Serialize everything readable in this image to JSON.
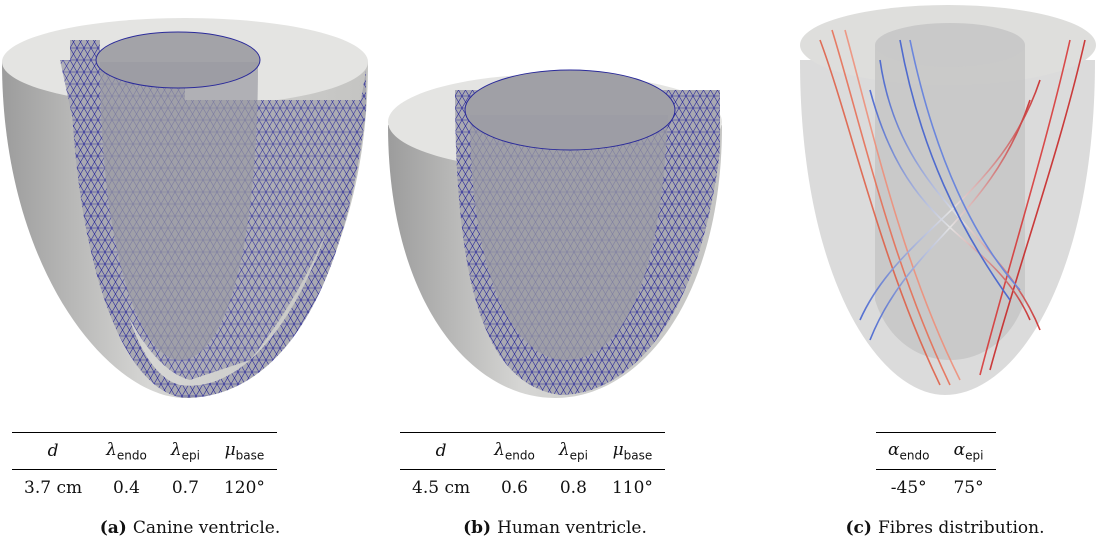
{
  "panels": [
    {
      "label": "(a)",
      "caption": "Canine ventricle.",
      "table": {
        "header": [
          {
            "symbol": "d"
          },
          {
            "symbol": "λ",
            "sub": "endo"
          },
          {
            "symbol": "λ",
            "sub": "epi"
          },
          {
            "symbol": "μ",
            "sub": "base"
          }
        ],
        "rows": [
          [
            "3.7 cm",
            "0.4",
            "0.7",
            "120°"
          ]
        ]
      }
    },
    {
      "label": "(b)",
      "caption": "Human ventricle.",
      "table": {
        "header": [
          {
            "symbol": "d"
          },
          {
            "symbol": "λ",
            "sub": "endo"
          },
          {
            "symbol": "λ",
            "sub": "epi"
          },
          {
            "symbol": "μ",
            "sub": "base"
          }
        ],
        "rows": [
          [
            "4.5 cm",
            "0.6",
            "0.8",
            "110°"
          ]
        ]
      }
    },
    {
      "label": "(c)",
      "caption": "Fibres distribution.",
      "table": {
        "header": [
          {
            "symbol": "α",
            "sub": "endo"
          },
          {
            "symbol": "α",
            "sub": "epi"
          }
        ],
        "rows": [
          [
            "-45°",
            "75°"
          ]
        ]
      }
    }
  ]
}
